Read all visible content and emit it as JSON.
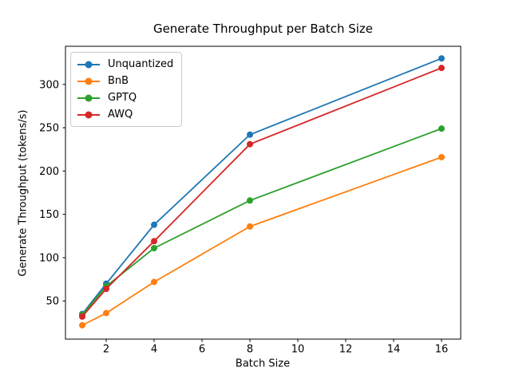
{
  "chart_data": {
    "type": "line",
    "title": "Generate Throughput per Batch Size",
    "xlabel": "Batch Size",
    "ylabel": "Generate Throughput (tokens/s)",
    "x": [
      1,
      2,
      4,
      8,
      16
    ],
    "series": [
      {
        "name": "Unquantized",
        "color": "#1f77b4",
        "values": [
          35,
          70,
          138,
          242,
          330
        ]
      },
      {
        "name": "BnB",
        "color": "#ff7f0e",
        "values": [
          22,
          36,
          72,
          136,
          216
        ]
      },
      {
        "name": "GPTQ",
        "color": "#2ca02c",
        "values": [
          34,
          67,
          111,
          166,
          249
        ]
      },
      {
        "name": "AWQ",
        "color": "#d62728",
        "values": [
          32,
          64,
          119,
          231,
          319
        ]
      }
    ],
    "xticks": [
      2,
      4,
      6,
      8,
      10,
      12,
      14,
      16
    ],
    "yticks": [
      50,
      100,
      150,
      200,
      250,
      300
    ],
    "xlim": [
      0.3,
      16.8
    ],
    "ylim": [
      6,
      344
    ],
    "grid": false,
    "marker": "o",
    "legend": {
      "location": "upper-left",
      "frame": true
    },
    "colors": {
      "axis": "#000000",
      "background": "#ffffff",
      "legend_border": "#cccccc"
    }
  }
}
